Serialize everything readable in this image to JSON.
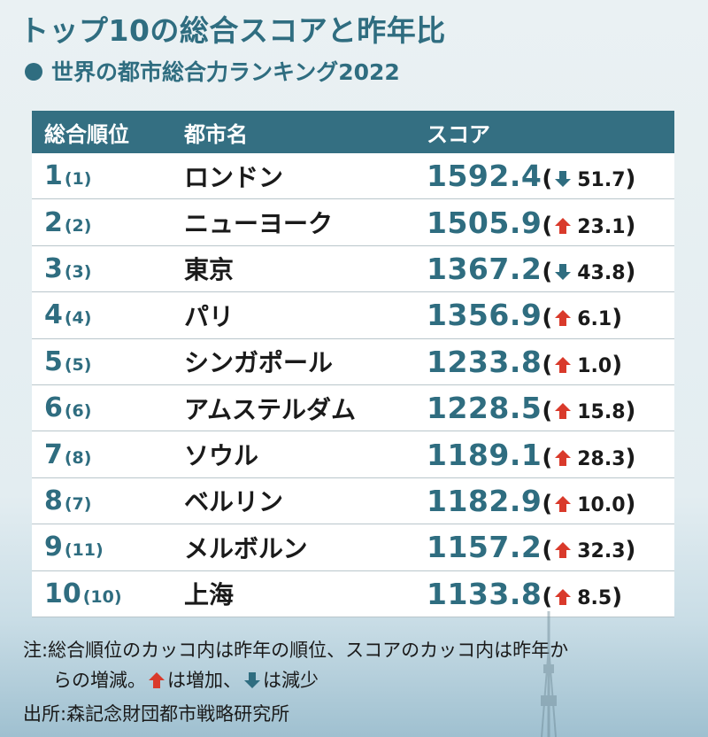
{
  "title": "トップ10の総合スコアと昨年比",
  "subtitle": "世界の都市総合力ランキング2022",
  "colors": {
    "accent": "#2f6d80",
    "header_bg": "#346f82",
    "up": "#d93a2b",
    "down": "#2f6d80"
  },
  "table": {
    "headers": {
      "rank": "総合順位",
      "city": "都市名",
      "score": "スコア"
    }
  },
  "chart_data": {
    "type": "table",
    "columns": [
      "総合順位",
      "都市名",
      "スコア"
    ],
    "rows": [
      {
        "rank": "1",
        "prev_rank": "(1)",
        "city": "ロンドン",
        "score": "1592.4",
        "direction": "down",
        "change": "51.7"
      },
      {
        "rank": "2",
        "prev_rank": "(2)",
        "city": "ニューヨーク",
        "score": "1505.9",
        "direction": "up",
        "change": "23.1"
      },
      {
        "rank": "3",
        "prev_rank": "(3)",
        "city": "東京",
        "score": "1367.2",
        "direction": "down",
        "change": "43.8"
      },
      {
        "rank": "4",
        "prev_rank": "(4)",
        "city": "パリ",
        "score": "1356.9",
        "direction": "up",
        "change": "6.1"
      },
      {
        "rank": "5",
        "prev_rank": "(5)",
        "city": "シンガポール",
        "score": "1233.8",
        "direction": "up",
        "change": "1.0"
      },
      {
        "rank": "6",
        "prev_rank": "(6)",
        "city": "アムステルダム",
        "score": "1228.5",
        "direction": "up",
        "change": "15.8"
      },
      {
        "rank": "7",
        "prev_rank": "(8)",
        "city": "ソウル",
        "score": "1189.1",
        "direction": "up",
        "change": "28.3"
      },
      {
        "rank": "8",
        "prev_rank": "(7)",
        "city": "ベルリン",
        "score": "1182.9",
        "direction": "up",
        "change": "10.0"
      },
      {
        "rank": "9",
        "prev_rank": "(11)",
        "city": "メルボルン",
        "score": "1157.2",
        "direction": "up",
        "change": "32.3"
      },
      {
        "rank": "10",
        "prev_rank": "(10)",
        "city": "上海",
        "score": "1133.8",
        "direction": "up",
        "change": "8.5"
      }
    ]
  },
  "notes": {
    "line1": "注:総合順位のカッコ内は昨年の順位、スコアのカッコ内は昨年か",
    "line2_a": "らの増減。",
    "line2_b": "は増加、",
    "line2_c": "は減少",
    "source": "出所:森記念財団都市戦略研究所"
  }
}
